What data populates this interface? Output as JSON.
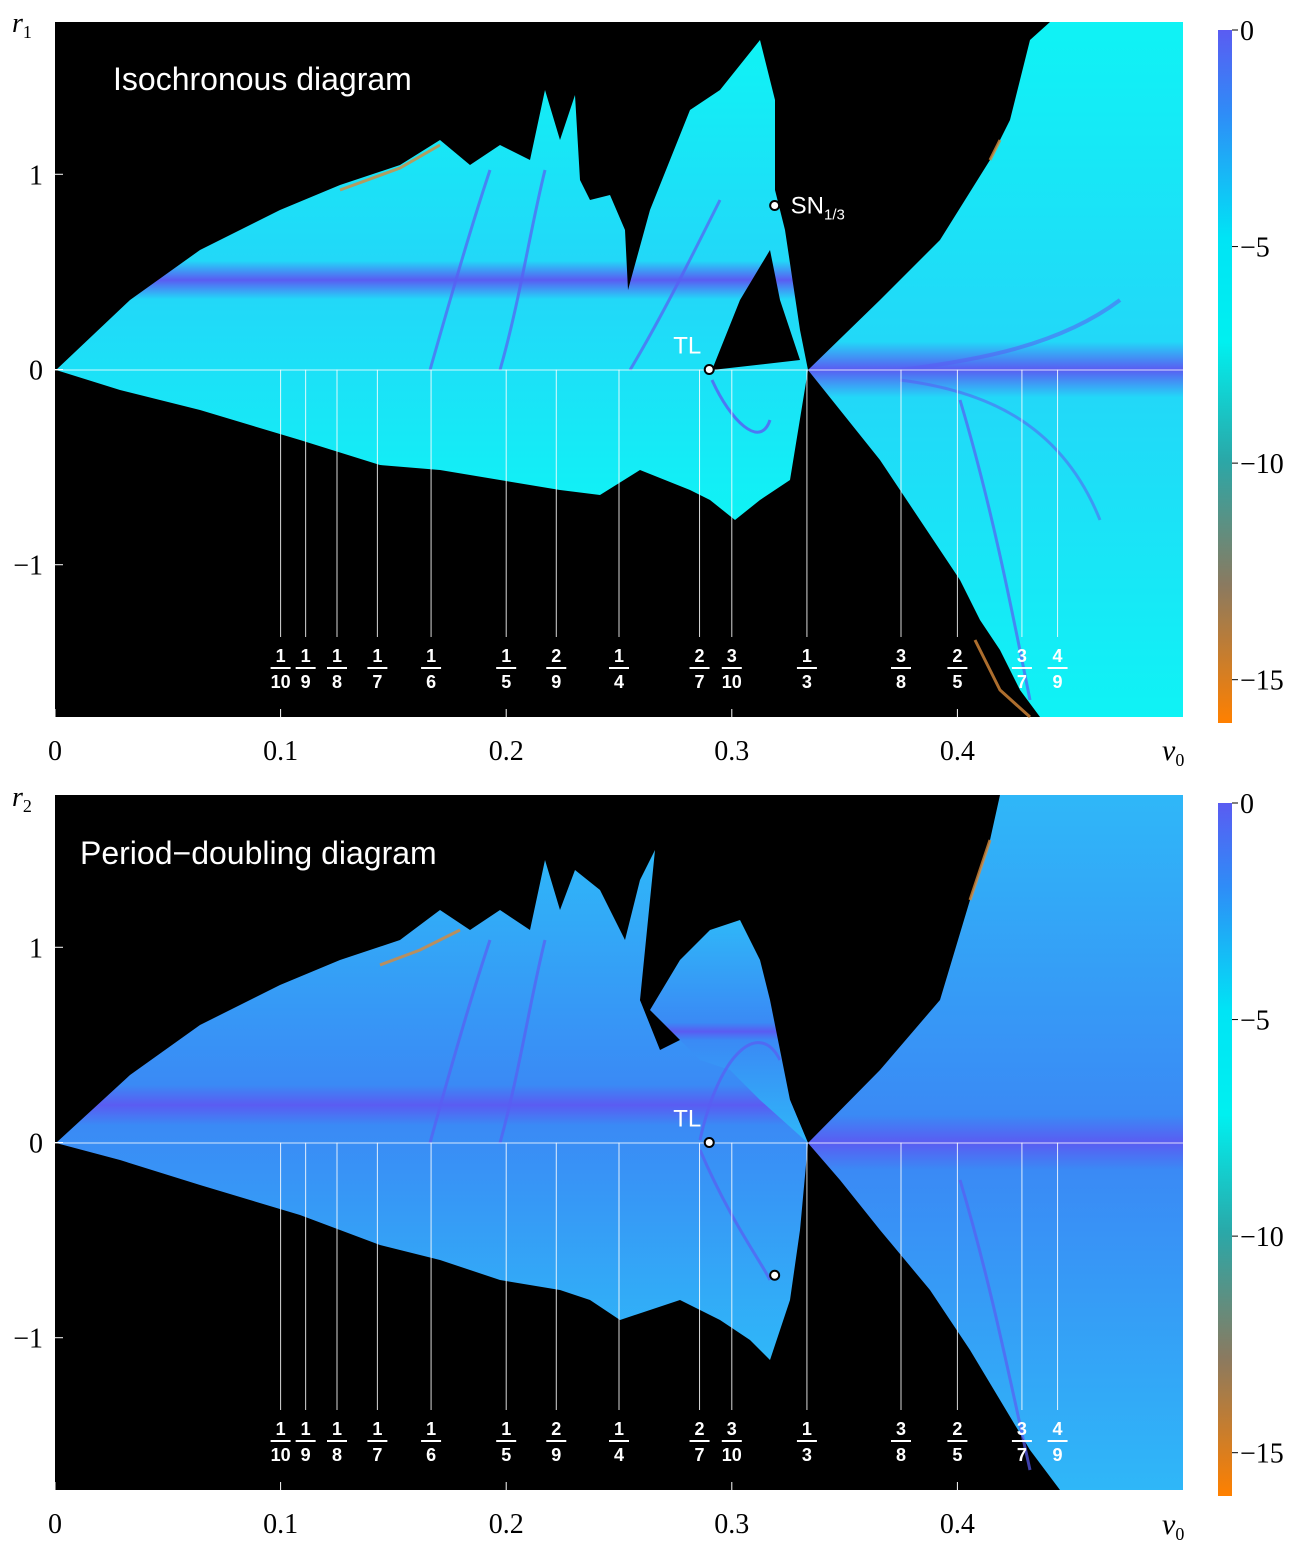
{
  "panels": [
    {
      "id": "top",
      "title": "Isochronous diagram",
      "ylabel_var": "r",
      "ylabel_sub": "1",
      "xlabel_var": "ν",
      "xlabel_sub": "0",
      "markers": [
        {
          "label": "TL",
          "nu": 0.29,
          "r": 0.0
        },
        {
          "label": "SN",
          "label_sub": "1/3",
          "nu": 0.319,
          "r": 0.84
        }
      ],
      "colorbar": {
        "ticks": [
          "0",
          "−5",
          "−10",
          "−15"
        ],
        "values": [
          0,
          -5,
          -10,
          -15
        ],
        "range": [
          0,
          -16
        ]
      }
    },
    {
      "id": "bottom",
      "title": "Period−doubling diagram",
      "ylabel_var": "r",
      "ylabel_sub": "2",
      "xlabel_var": "ν",
      "xlabel_sub": "0",
      "markers": [
        {
          "label": "TL",
          "nu": 0.29,
          "r": 0.0
        },
        {
          "label": "",
          "nu": 0.319,
          "r": -0.68
        }
      ],
      "colorbar": {
        "ticks": [
          "0",
          "−5",
          "−10",
          "−15"
        ],
        "values": [
          0,
          -5,
          -10,
          -15
        ],
        "range": [
          0,
          -16
        ]
      }
    }
  ],
  "chart_data": {
    "type": "heatmap",
    "x_range": [
      0,
      0.5
    ],
    "y_range": [
      -1.78,
      1.78
    ],
    "x_ticks": [
      "0",
      "0.1",
      "0.2",
      "0.3",
      "0.4"
    ],
    "x_tick_values": [
      0,
      0.1,
      0.2,
      0.3,
      0.4
    ],
    "y_ticks": [
      "1",
      "0",
      "−1"
    ],
    "y_tick_values": [
      1,
      0,
      -1
    ],
    "resonances": [
      {
        "num": "1",
        "den": "10",
        "nu": 0.1
      },
      {
        "num": "1",
        "den": "9",
        "nu": 0.1111
      },
      {
        "num": "1",
        "den": "8",
        "nu": 0.125
      },
      {
        "num": "1",
        "den": "7",
        "nu": 0.1429
      },
      {
        "num": "1",
        "den": "6",
        "nu": 0.1667
      },
      {
        "num": "1",
        "den": "5",
        "nu": 0.2
      },
      {
        "num": "2",
        "den": "9",
        "nu": 0.2222
      },
      {
        "num": "1",
        "den": "4",
        "nu": 0.25
      },
      {
        "num": "2",
        "den": "7",
        "nu": 0.2857
      },
      {
        "num": "3",
        "den": "10",
        "nu": 0.3
      },
      {
        "num": "1",
        "den": "3",
        "nu": 0.3333
      },
      {
        "num": "3",
        "den": "8",
        "nu": 0.375
      },
      {
        "num": "2",
        "den": "5",
        "nu": 0.4
      },
      {
        "num": "3",
        "den": "7",
        "nu": 0.4286
      },
      {
        "num": "4",
        "den": "9",
        "nu": 0.4444
      }
    ],
    "colors": {
      "high": "#5a5cf2",
      "mid": "#00f0f0",
      "low": "#ff8000",
      "background": "#000000"
    }
  }
}
